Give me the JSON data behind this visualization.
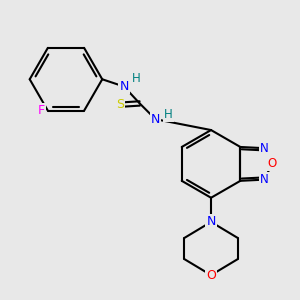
{
  "background_color": "#e8e8e8",
  "bond_width": 1.5,
  "fig_size": [
    3.0,
    3.0
  ],
  "dpi": 100,
  "colors": {
    "N": "#0000ff",
    "O": "#ff0000",
    "F": "#ff00ff",
    "S": "#cccc00",
    "H": "#008080",
    "C": "#000000"
  }
}
